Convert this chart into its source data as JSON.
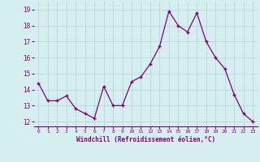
{
  "x": [
    0,
    1,
    2,
    3,
    4,
    5,
    6,
    7,
    8,
    9,
    10,
    11,
    12,
    13,
    14,
    15,
    16,
    17,
    18,
    19,
    20,
    21,
    22,
    23
  ],
  "y": [
    14.4,
    13.3,
    13.3,
    13.6,
    12.8,
    12.5,
    12.2,
    14.2,
    13.0,
    13.0,
    14.5,
    14.8,
    15.6,
    16.7,
    18.9,
    18.0,
    17.6,
    18.8,
    17.0,
    16.0,
    15.3,
    13.7,
    12.5,
    12.0
  ],
  "line_color": "#800080",
  "marker": "+",
  "marker_size": 4,
  "bg_color": "#d5eef0",
  "grid_color": "#b8d8dc",
  "xlabel": "Windchill (Refroidissement éolien,°C)",
  "xlabel_color": "#800080",
  "tick_color": "#800080",
  "ylim": [
    11.7,
    19.5
  ],
  "yticks": [
    12,
    13,
    14,
    15,
    16,
    17,
    18,
    19
  ],
  "xticks": [
    0,
    1,
    2,
    3,
    4,
    5,
    6,
    7,
    8,
    9,
    10,
    11,
    12,
    13,
    14,
    15,
    16,
    17,
    18,
    19,
    20,
    21,
    22,
    23
  ],
  "xtick_labels": [
    "0",
    "1",
    "2",
    "3",
    "4",
    "5",
    "6",
    "7",
    "8",
    "9",
    "10",
    "11",
    "12",
    "13",
    "14",
    "15",
    "16",
    "17",
    "18",
    "19",
    "20",
    "21",
    "22",
    "23"
  ]
}
